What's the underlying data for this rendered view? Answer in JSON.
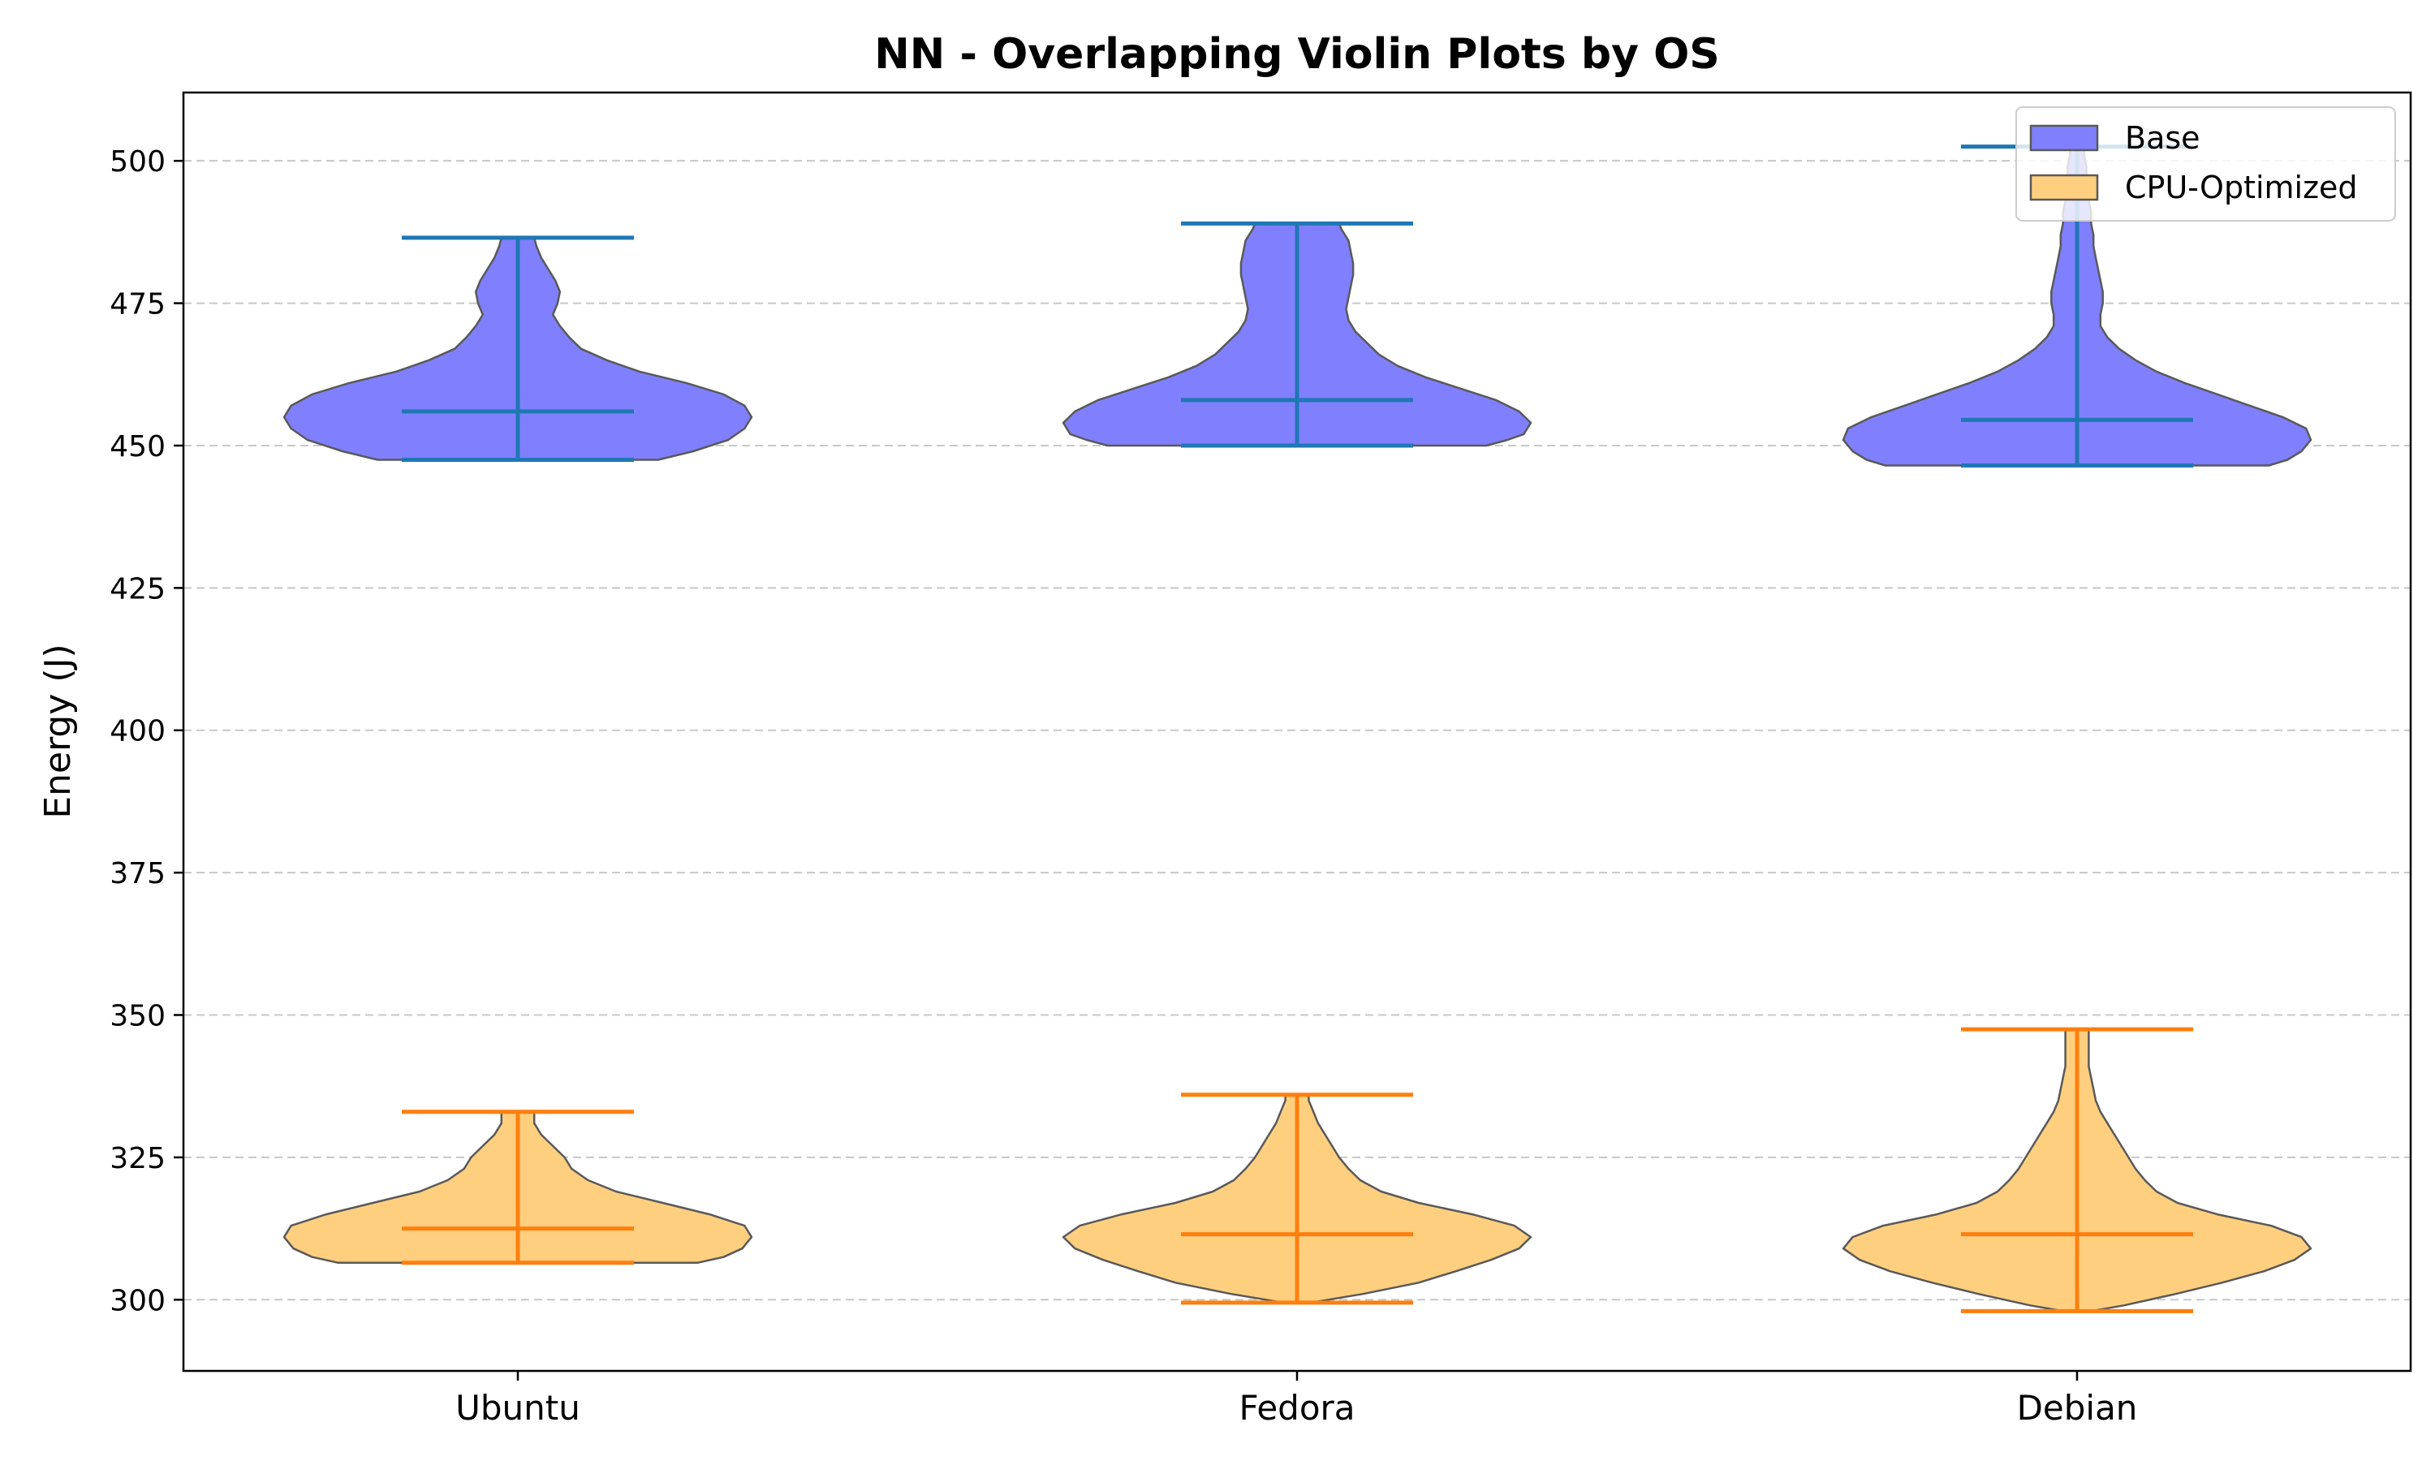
{
  "chart_data": {
    "type": "violin",
    "title": "NN - Overlapping Violin Plots by OS",
    "xlabel": "",
    "ylabel": "Energy (J)",
    "categories": [
      "Ubuntu",
      "Fedora",
      "Debian"
    ],
    "ylim": [
      287.5,
      512
    ],
    "yticks": [
      300,
      325,
      350,
      375,
      400,
      425,
      450,
      475,
      500
    ],
    "grid": "y-dashed",
    "legend_position": "top-right",
    "colors": {
      "base_fill": "#8080ff",
      "cpu_fill": "#ffcf80",
      "base_lines": "#1f77b4",
      "cpu_lines": "#ff7f0e",
      "violin_edge": "#595959",
      "grid": "#c8c8c8"
    },
    "series": [
      {
        "name": "Base",
        "violins": [
          {
            "category": "Ubuntu",
            "min": 447.5,
            "max": 486.5,
            "median": 456,
            "density": [
              [
                447.5,
                0.6
              ],
              [
                449,
                0.75
              ],
              [
                451,
                0.9
              ],
              [
                453,
                0.97
              ],
              [
                455,
                1.0
              ],
              [
                457,
                0.97
              ],
              [
                459,
                0.88
              ],
              [
                461,
                0.72
              ],
              [
                463,
                0.52
              ],
              [
                465,
                0.38
              ],
              [
                467,
                0.27
              ],
              [
                469,
                0.22
              ],
              [
                471,
                0.18
              ],
              [
                473,
                0.15
              ],
              [
                475,
                0.17
              ],
              [
                477,
                0.18
              ],
              [
                479,
                0.16
              ],
              [
                481,
                0.13
              ],
              [
                483,
                0.1
              ],
              [
                485,
                0.08
              ],
              [
                486.5,
                0.07
              ]
            ]
          },
          {
            "category": "Fedora",
            "min": 450,
            "max": 489,
            "median": 458,
            "density": [
              [
                450,
                0.81
              ],
              [
                451,
                0.9
              ],
              [
                452,
                0.97
              ],
              [
                454,
                1.0
              ],
              [
                456,
                0.95
              ],
              [
                458,
                0.85
              ],
              [
                460,
                0.7
              ],
              [
                462,
                0.55
              ],
              [
                464,
                0.43
              ],
              [
                466,
                0.35
              ],
              [
                468,
                0.3
              ],
              [
                470,
                0.25
              ],
              [
                472,
                0.22
              ],
              [
                474,
                0.21
              ],
              [
                476,
                0.22
              ],
              [
                478,
                0.23
              ],
              [
                480,
                0.24
              ],
              [
                482,
                0.24
              ],
              [
                484,
                0.23
              ],
              [
                486,
                0.22
              ],
              [
                488,
                0.19
              ],
              [
                489,
                0.18
              ]
            ]
          },
          {
            "category": "Debian",
            "min": 446.5,
            "max": 502.5,
            "median": 454.5,
            "density": [
              [
                446.5,
                0.82
              ],
              [
                447.5,
                0.9
              ],
              [
                449,
                0.96
              ],
              [
                451,
                1.0
              ],
              [
                453,
                0.98
              ],
              [
                455,
                0.88
              ],
              [
                457,
                0.74
              ],
              [
                459,
                0.6
              ],
              [
                461,
                0.46
              ],
              [
                463,
                0.34
              ],
              [
                465,
                0.25
              ],
              [
                467,
                0.18
              ],
              [
                469,
                0.13
              ],
              [
                471,
                0.1
              ],
              [
                473,
                0.1
              ],
              [
                475,
                0.11
              ],
              [
                477,
                0.11
              ],
              [
                479,
                0.1
              ],
              [
                481,
                0.09
              ],
              [
                483,
                0.08
              ],
              [
                485,
                0.07
              ],
              [
                487,
                0.07
              ],
              [
                489,
                0.06
              ],
              [
                491,
                0.06
              ],
              [
                493,
                0.05
              ],
              [
                495,
                0.05
              ],
              [
                497,
                0.04
              ],
              [
                499,
                0.04
              ],
              [
                501,
                0.03
              ],
              [
                502.5,
                0.03
              ]
            ]
          }
        ]
      },
      {
        "name": "CPU-Optimized",
        "violins": [
          {
            "category": "Ubuntu",
            "min": 306.5,
            "max": 333,
            "median": 312.5,
            "density": [
              [
                306.5,
                0.77
              ],
              [
                307.5,
                0.88
              ],
              [
                309,
                0.96
              ],
              [
                311,
                1.0
              ],
              [
                313,
                0.97
              ],
              [
                315,
                0.82
              ],
              [
                317,
                0.62
              ],
              [
                319,
                0.42
              ],
              [
                321,
                0.3
              ],
              [
                323,
                0.23
              ],
              [
                325,
                0.2
              ],
              [
                327,
                0.15
              ],
              [
                329,
                0.1
              ],
              [
                331,
                0.07
              ],
              [
                333,
                0.07
              ]
            ]
          },
          {
            "category": "Fedora",
            "min": 299.5,
            "max": 336,
            "median": 311.5,
            "density": [
              [
                299.5,
                0.06
              ],
              [
                301,
                0.28
              ],
              [
                303,
                0.52
              ],
              [
                305,
                0.68
              ],
              [
                307,
                0.83
              ],
              [
                309,
                0.95
              ],
              [
                311,
                1.0
              ],
              [
                313,
                0.93
              ],
              [
                315,
                0.75
              ],
              [
                317,
                0.52
              ],
              [
                319,
                0.36
              ],
              [
                321,
                0.27
              ],
              [
                323,
                0.22
              ],
              [
                325,
                0.18
              ],
              [
                327,
                0.15
              ],
              [
                329,
                0.12
              ],
              [
                331,
                0.09
              ],
              [
                333,
                0.07
              ],
              [
                335,
                0.05
              ],
              [
                336,
                0.05
              ]
            ]
          },
          {
            "category": "Debian",
            "min": 298,
            "max": 347.5,
            "median": 311.5,
            "density": [
              [
                298,
                0.06
              ],
              [
                299,
                0.2
              ],
              [
                301,
                0.42
              ],
              [
                303,
                0.62
              ],
              [
                305,
                0.8
              ],
              [
                307,
                0.93
              ],
              [
                309,
                1.0
              ],
              [
                311,
                0.96
              ],
              [
                313,
                0.83
              ],
              [
                315,
                0.6
              ],
              [
                317,
                0.43
              ],
              [
                319,
                0.34
              ],
              [
                321,
                0.29
              ],
              [
                323,
                0.25
              ],
              [
                325,
                0.22
              ],
              [
                327,
                0.19
              ],
              [
                329,
                0.16
              ],
              [
                331,
                0.13
              ],
              [
                333,
                0.1
              ],
              [
                335,
                0.08
              ],
              [
                337,
                0.07
              ],
              [
                339,
                0.06
              ],
              [
                341,
                0.05
              ],
              [
                343,
                0.05
              ],
              [
                345,
                0.05
              ],
              [
                347.5,
                0.05
              ]
            ]
          }
        ]
      }
    ]
  }
}
